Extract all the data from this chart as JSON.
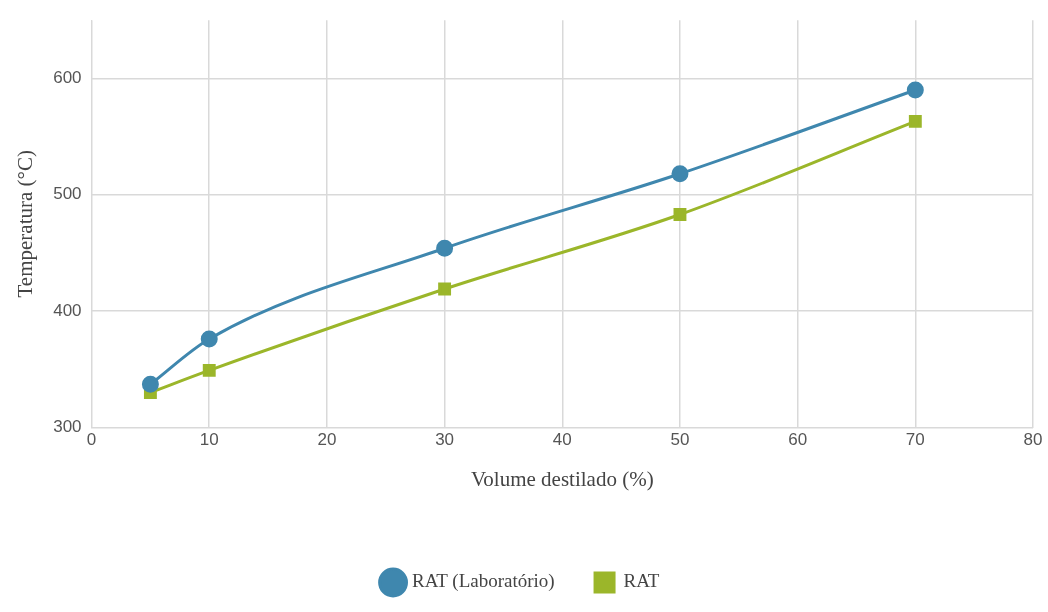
{
  "chart_data": {
    "type": "line",
    "xlabel": "Volume destilado (%)",
    "ylabel": "Temperatura (°C)",
    "x": [
      5,
      10,
      30,
      50,
      70
    ],
    "series": [
      {
        "name": "RAT (Laboratório)",
        "color": "#3f87ae",
        "marker": "circle",
        "values": [
          337,
          376,
          454,
          518,
          590
        ]
      },
      {
        "name": "RAT",
        "color": "#9bb62a",
        "marker": "square",
        "values": [
          330,
          349,
          419,
          483,
          563
        ]
      }
    ],
    "xlim": [
      0,
      80
    ],
    "xticks": [
      0,
      10,
      20,
      30,
      40,
      50,
      60,
      70,
      80
    ],
    "ylim": [
      300,
      650
    ],
    "yticks": [
      300,
      400,
      500,
      600
    ],
    "grid": true,
    "legend": "bottom"
  }
}
